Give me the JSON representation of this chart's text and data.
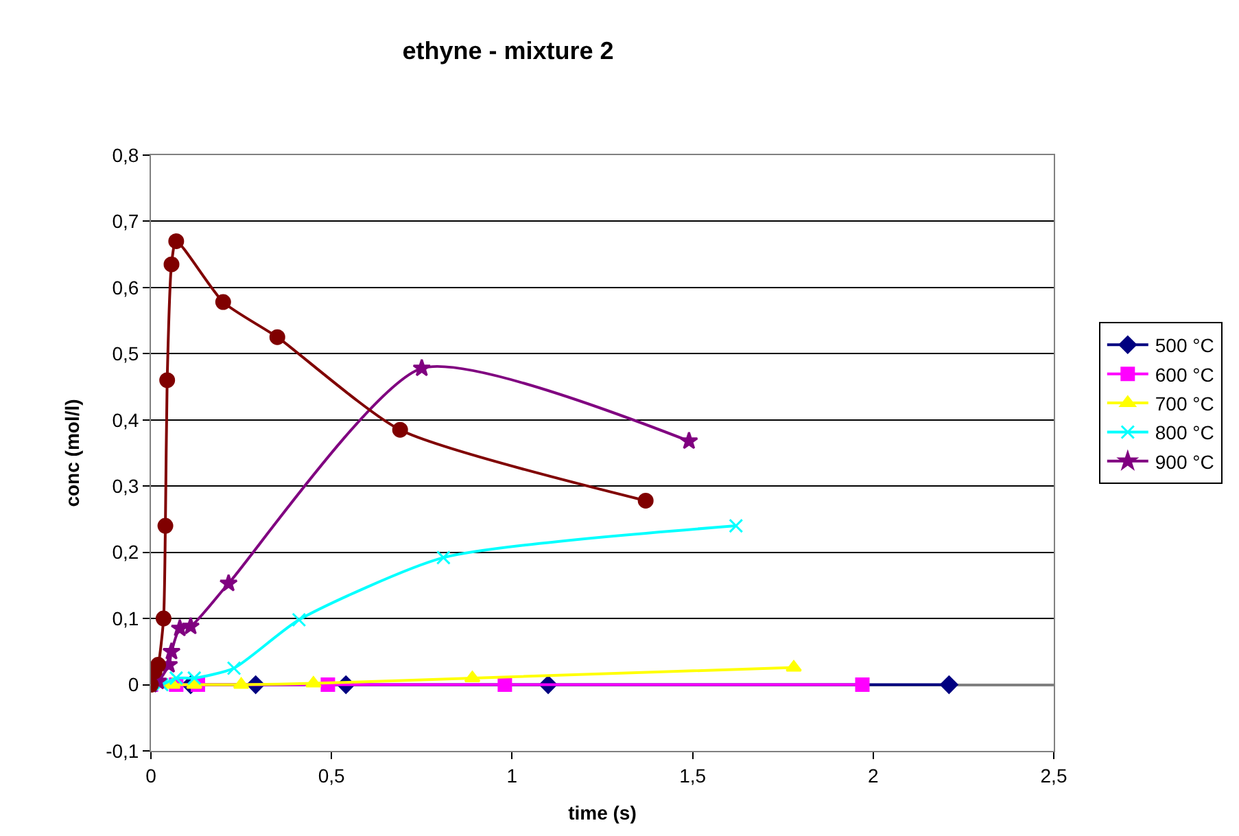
{
  "chart_data": {
    "type": "line",
    "title": "ethyne - mixture 2",
    "xlabel": "time (s)",
    "ylabel": "conc (mol/l)",
    "xlim": [
      0,
      2.5
    ],
    "xticks": [
      0,
      {
        "value": 0.5,
        "label": "0,5"
      },
      1,
      {
        "value": 1.5,
        "label": "1,5"
      },
      2,
      {
        "value": 2.5,
        "label": "2,5"
      }
    ],
    "ylim": [
      -0.1,
      0.8
    ],
    "yticks": [
      {
        "value": -0.1,
        "label": "-0,1"
      },
      0,
      {
        "value": 0.1,
        "label": "0,1"
      },
      {
        "value": 0.2,
        "label": "0,2"
      },
      {
        "value": 0.3,
        "label": "0,3"
      },
      {
        "value": 0.4,
        "label": "0,4"
      },
      {
        "value": 0.5,
        "label": "0,5"
      },
      {
        "value": 0.6,
        "label": "0,6"
      },
      {
        "value": 0.7,
        "label": "0,7"
      },
      {
        "value": 0.8,
        "label": "0,8"
      }
    ],
    "grid": "y",
    "legend": "right",
    "series": [
      {
        "name": "500 °C",
        "color": "#000080",
        "marker": "diamond",
        "x": [
          0.11,
          0.29,
          0.54,
          1.1,
          2.21
        ],
        "values": [
          0,
          0,
          0,
          0,
          0
        ]
      },
      {
        "name": "600 °C",
        "color": "#ff00ff",
        "marker": "square",
        "x": [
          0,
          0.07,
          0.13,
          0.49,
          0.98,
          1.97
        ],
        "values": [
          0,
          0,
          0,
          0,
          0,
          0
        ]
      },
      {
        "name": "700 °C",
        "color": "#ffff00",
        "marker": "triangle",
        "x": [
          0,
          0.06,
          0.12,
          0.25,
          0.45,
          0.89,
          1.78
        ],
        "values": [
          0,
          0,
          0,
          0,
          0.002,
          0.01,
          0.026
        ]
      },
      {
        "name": "800 °C",
        "color": "#00ffff",
        "marker": "cross",
        "x": [
          0,
          0.03,
          0.07,
          0.12,
          0.23,
          0.41,
          0.81,
          1.62
        ],
        "values": [
          0,
          0,
          0.01,
          0.01,
          0.025,
          0.098,
          0.192,
          0.24
        ]
      },
      {
        "name": "900 °C",
        "color": "#800080",
        "marker": "star",
        "x": [
          0,
          0.02,
          0.05,
          0.057,
          0.08,
          0.11,
          0.215,
          0.75,
          1.49
        ],
        "values": [
          0,
          0.005,
          0.03,
          0.05,
          0.085,
          0.088,
          0.153,
          0.478,
          0.368
        ]
      },
      {
        "color": "#800000",
        "marker": "circle",
        "x": [
          0,
          0.01,
          0.02,
          0.035,
          0.04,
          0.045,
          0.057,
          0.07,
          0.2,
          0.35,
          0.69,
          1.37
        ],
        "values": [
          0,
          0.02,
          0.03,
          0.1,
          0.24,
          0.46,
          0.635,
          0.67,
          0.578,
          0.525,
          0.385,
          0.278
        ]
      }
    ]
  }
}
